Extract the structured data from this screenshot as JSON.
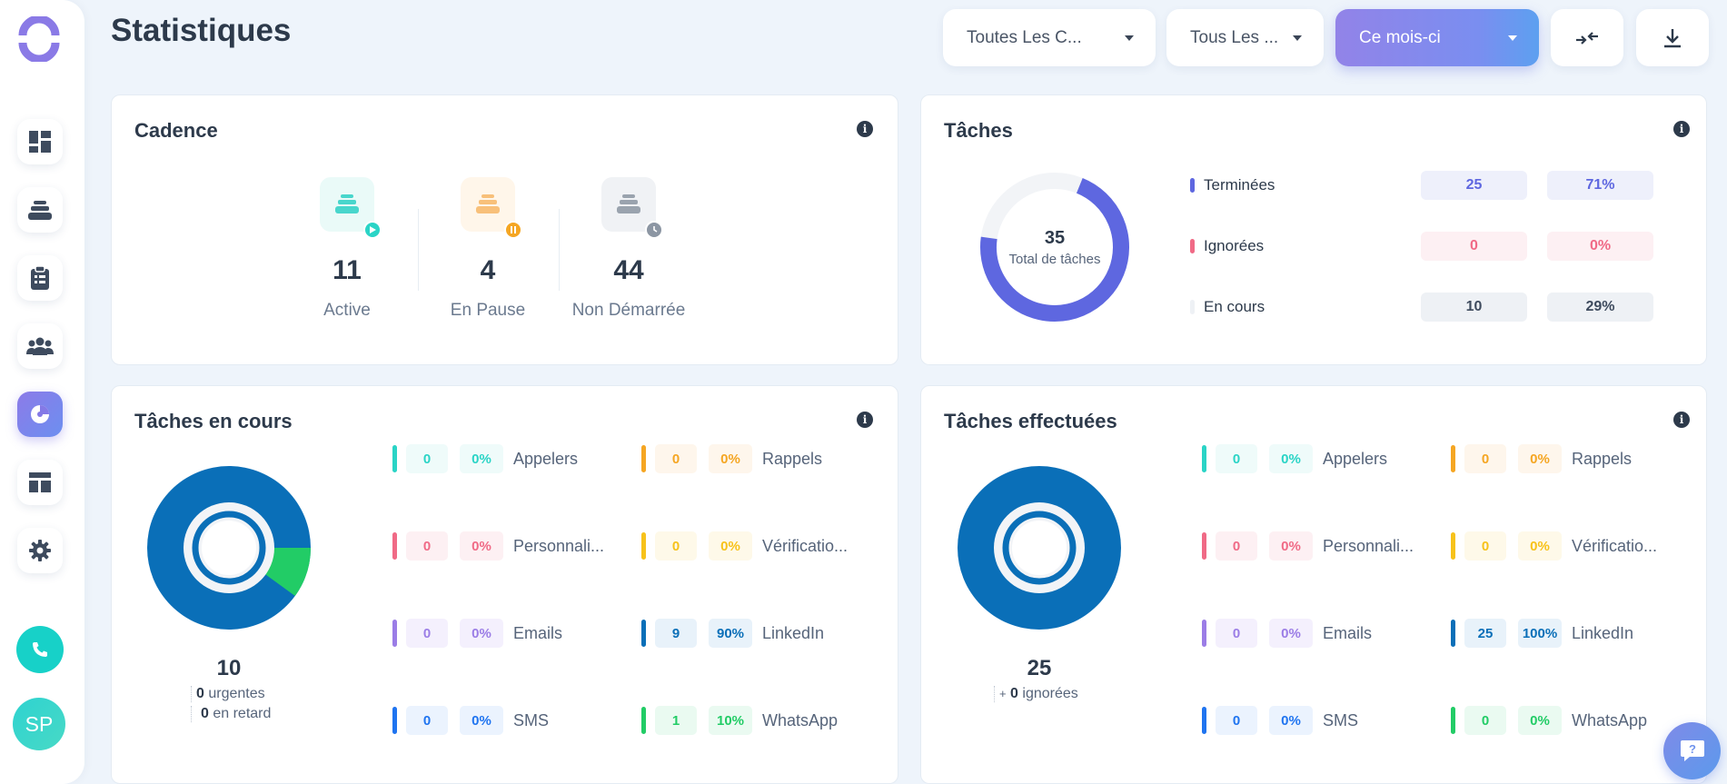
{
  "page": {
    "title": "Statistiques"
  },
  "filters": {
    "campaigns": "Toutes Les C...",
    "users": "Tous Les ...",
    "period": "Ce mois-ci"
  },
  "user": {
    "initials": "SP"
  },
  "colors": {
    "teal": "#2ad4c6",
    "orange": "#f5a623",
    "gray": "#8c96a3",
    "pink": "#f06a86",
    "yellow": "#f7c21b",
    "purple": "#9b7de6",
    "navy": "#0a6fb8",
    "blue": "#1f74f0",
    "green": "#22cc66",
    "indigo": "#5e67e0"
  },
  "cadence": {
    "title": "Cadence",
    "items": [
      {
        "value": "11",
        "label": "Active",
        "icon": "play-icon"
      },
      {
        "value": "4",
        "label": "En Pause",
        "icon": "pause-icon"
      },
      {
        "value": "44",
        "label": "Non Démarrée",
        "icon": "clock-icon"
      }
    ]
  },
  "taches": {
    "title": "Tâches",
    "total": "35",
    "total_label": "Total de tâches",
    "rows": [
      {
        "label": "Terminées",
        "count": "25",
        "pct": "71%"
      },
      {
        "label": "Ignorées",
        "count": "0",
        "pct": "0%"
      },
      {
        "label": "En cours",
        "count": "10",
        "pct": "29%"
      }
    ]
  },
  "en_cours": {
    "title": "Tâches en cours",
    "total": "10",
    "urgent_count": "0",
    "urgent_label": "urgentes",
    "late_count": "0",
    "late_label": "en retard",
    "categories": [
      {
        "label": "Appelers",
        "count": "0",
        "pct": "0%"
      },
      {
        "label": "Rappels",
        "count": "0",
        "pct": "0%"
      },
      {
        "label": "Personnali...",
        "count": "0",
        "pct": "0%"
      },
      {
        "label": "Vérificatio...",
        "count": "0",
        "pct": "0%"
      },
      {
        "label": "Emails",
        "count": "0",
        "pct": "0%"
      },
      {
        "label": "LinkedIn",
        "count": "9",
        "pct": "90%"
      },
      {
        "label": "SMS",
        "count": "0",
        "pct": "0%"
      },
      {
        "label": "WhatsApp",
        "count": "1",
        "pct": "10%"
      }
    ]
  },
  "effectuees": {
    "title": "Tâches effectuées",
    "total": "25",
    "plus": "+",
    "ignored_count": "0",
    "ignored_label": "ignorées",
    "categories": [
      {
        "label": "Appelers",
        "count": "0",
        "pct": "0%"
      },
      {
        "label": "Rappels",
        "count": "0",
        "pct": "0%"
      },
      {
        "label": "Personnali...",
        "count": "0",
        "pct": "0%"
      },
      {
        "label": "Vérificatio...",
        "count": "0",
        "pct": "0%"
      },
      {
        "label": "Emails",
        "count": "0",
        "pct": "0%"
      },
      {
        "label": "LinkedIn",
        "count": "25",
        "pct": "100%"
      },
      {
        "label": "SMS",
        "count": "0",
        "pct": "0%"
      },
      {
        "label": "WhatsApp",
        "count": "0",
        "pct": "0%"
      }
    ]
  }
}
